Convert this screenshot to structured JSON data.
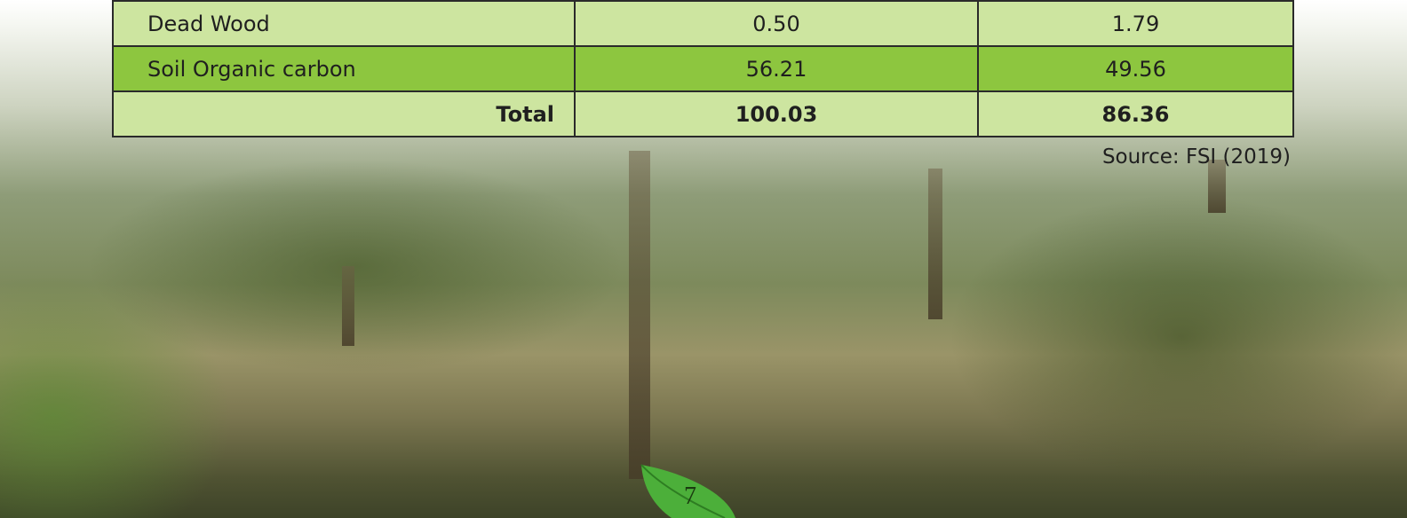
{
  "table": {
    "rows": [
      [
        "Dead Wood",
        "0.50",
        "1.79"
      ],
      [
        "Soil Organic carbon",
        "56.21",
        "49.56"
      ],
      [
        "Total",
        "100.03",
        "86.36"
      ]
    ]
  },
  "source": "Source: FSI (2019)",
  "page_number": "7"
}
